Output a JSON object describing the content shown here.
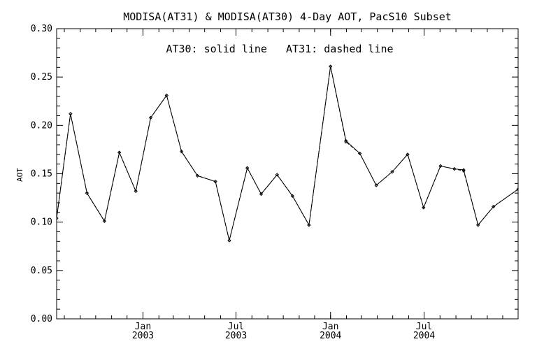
{
  "chart_data": {
    "type": "line",
    "title": "MODISA(AT31) & MODISA(AT30) 4-Day AOT, PacS10 Subset",
    "annotation": "AT30: solid line   AT31: dashed line",
    "ylabel": "AOT",
    "xlabel": "",
    "ylim": [
      0.0,
      0.3
    ],
    "yticks": [
      "0.00",
      "0.05",
      "0.10",
      "0.15",
      "0.20",
      "0.25",
      "0.30"
    ],
    "x_range": [
      "2002-07-17",
      "2004-12-31"
    ],
    "xticks": [
      {
        "date": "2003-01-01",
        "label1": "Jan",
        "label2": "2003"
      },
      {
        "date": "2003-07-01",
        "label1": "Jul",
        "label2": "2003"
      },
      {
        "date": "2004-01-01",
        "label1": "Jan",
        "label2": "2004"
      },
      {
        "date": "2004-07-01",
        "label1": "Jul",
        "label2": "2004"
      }
    ],
    "grid": false,
    "series": [
      {
        "name": "AT30",
        "style": "solid",
        "x": [
          "2002-07-17",
          "2002-08-13",
          "2002-09-14",
          "2002-10-18",
          "2002-11-16",
          "2002-12-18",
          "2003-01-16",
          "2003-02-16",
          "2003-03-17",
          "2003-04-17",
          "2003-05-22",
          "2003-06-18",
          "2003-07-23",
          "2003-08-19",
          "2003-09-19",
          "2003-10-19",
          "2003-11-20",
          "2004-01-01",
          "2004-01-31",
          "2004-02-27",
          "2004-03-30",
          "2004-04-30",
          "2004-05-30",
          "2004-06-30",
          "2004-08-02",
          "2004-08-29",
          "2004-09-16",
          "2004-10-14",
          "2004-11-13",
          "2004-12-31"
        ],
        "values": [
          0.104,
          0.212,
          0.13,
          0.101,
          0.172,
          0.132,
          0.208,
          0.231,
          0.173,
          0.148,
          0.142,
          0.081,
          0.156,
          0.129,
          0.149,
          0.127,
          0.097,
          0.261,
          0.184,
          0.171,
          0.138,
          0.152,
          0.17,
          0.115,
          0.158,
          0.155,
          0.154,
          0.097,
          0.116,
          0.134
        ]
      },
      {
        "name": "AT31",
        "style": "dashed",
        "x": [
          "2002-07-17",
          "2002-08-13",
          "2002-09-14",
          "2002-10-18",
          "2002-11-16",
          "2002-12-18",
          "2003-01-16",
          "2003-02-16",
          "2003-03-17",
          "2003-04-17",
          "2003-05-22",
          "2003-06-18",
          "2003-07-23",
          "2003-08-19",
          "2003-09-19",
          "2003-10-19",
          "2003-11-20",
          "2004-01-01",
          "2004-01-31",
          "2004-02-27",
          "2004-03-30",
          "2004-04-30",
          "2004-05-30",
          "2004-06-30",
          "2004-08-02",
          "2004-08-29",
          "2004-09-16",
          "2004-10-14",
          "2004-11-13",
          "2004-12-31"
        ],
        "values": [
          0.104,
          0.212,
          0.13,
          0.101,
          0.172,
          0.132,
          0.208,
          0.231,
          0.173,
          0.148,
          0.142,
          0.081,
          0.156,
          0.129,
          0.149,
          0.127,
          0.097,
          0.261,
          0.183,
          0.171,
          0.138,
          0.152,
          0.17,
          0.115,
          0.158,
          0.155,
          0.153,
          0.097,
          0.116,
          0.134
        ]
      }
    ],
    "colors": {
      "line": "#000000",
      "background": "#ffffff"
    }
  }
}
